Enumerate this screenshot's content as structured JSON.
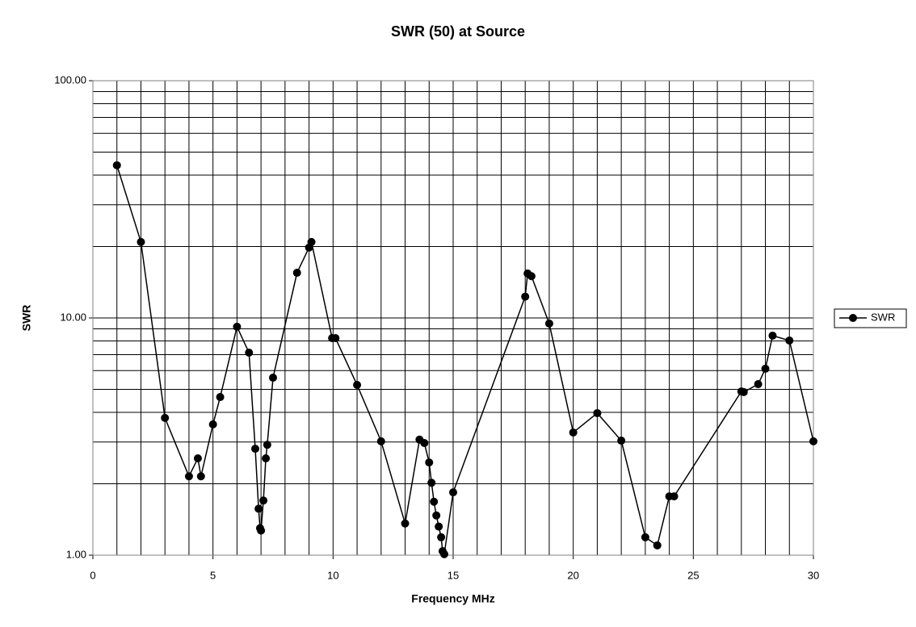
{
  "chart_data": {
    "type": "line",
    "title": "SWR (50) at Source",
    "x_label": "Frequency MHz",
    "y_label": "SWR",
    "x": [
      1.0,
      2.0,
      3.0,
      4.0,
      4.37,
      4.5,
      5.0,
      5.3,
      6.0,
      6.5,
      6.76,
      6.9,
      6.96,
      7.0,
      7.1,
      7.2,
      7.26,
      7.5,
      8.5,
      9.0,
      9.1,
      9.96,
      10.1,
      11.0,
      12.0,
      13.0,
      13.6,
      13.8,
      14.0,
      14.1,
      14.2,
      14.3,
      14.4,
      14.5,
      14.56,
      14.63,
      15.0,
      18.0,
      18.1,
      18.26,
      19.0,
      20.0,
      21.0,
      22.0,
      23.0,
      23.5,
      24.0,
      24.2,
      27.0,
      27.1,
      27.7,
      28.0,
      28.3,
      29.0,
      30.0
    ],
    "series": [
      {
        "name": "SWR",
        "color": "#000000",
        "values": [
          44,
          20.9,
          3.79,
          2.15,
          2.56,
          2.15,
          3.56,
          4.64,
          9.18,
          7.14,
          2.81,
          1.57,
          1.3,
          1.27,
          1.7,
          2.56,
          2.92,
          5.6,
          15.5,
          19.8,
          20.9,
          8.22,
          8.22,
          5.22,
          3.02,
          1.36,
          3.07,
          2.97,
          2.46,
          2.02,
          1.68,
          1.47,
          1.32,
          1.19,
          1.04,
          1.01,
          1.84,
          12.3,
          15.4,
          15.0,
          9.47,
          3.29,
          3.97,
          3.04,
          1.19,
          1.1,
          1.77,
          1.77,
          4.9,
          4.87,
          5.26,
          6.11,
          8.42,
          8.03,
          3.02
        ]
      }
    ],
    "xlim": [
      0,
      30
    ],
    "xticks": [
      0,
      5,
      10,
      15,
      20,
      25,
      30
    ],
    "ylim": [
      1,
      100
    ],
    "yticks": [
      {
        "value": 1,
        "label": "1.00"
      },
      {
        "value": 10,
        "label": "10.00"
      },
      {
        "value": 100,
        "label": "100.00"
      }
    ],
    "ylog": true,
    "grid": true,
    "legend": "right"
  }
}
